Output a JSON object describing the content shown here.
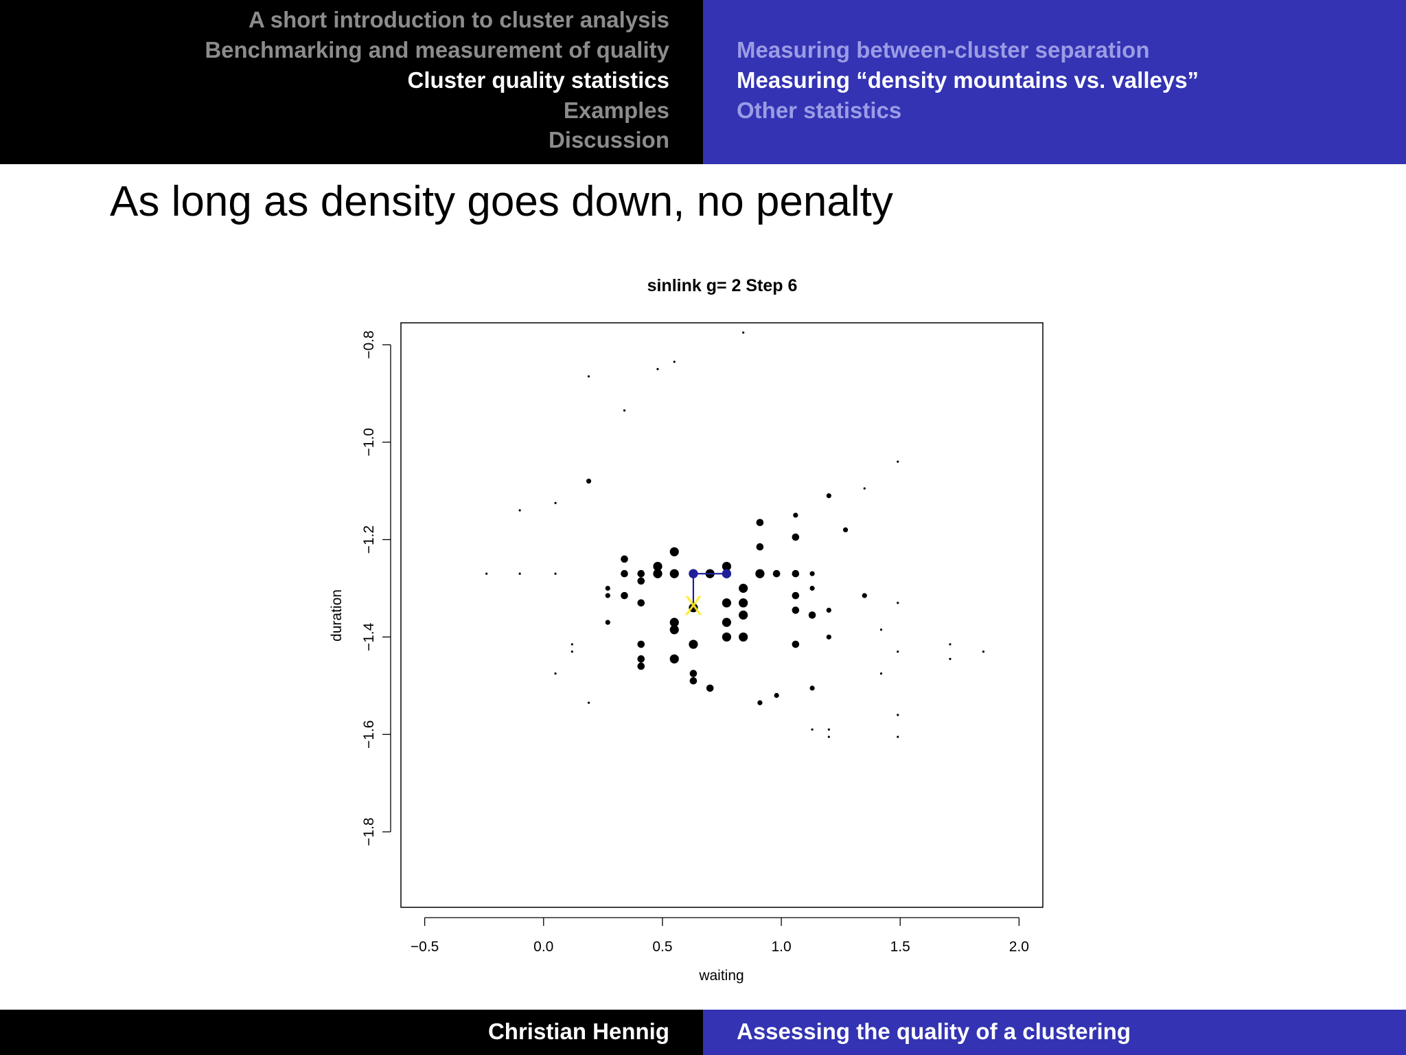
{
  "header": {
    "sections": [
      {
        "label": "A short introduction to cluster analysis",
        "active": false
      },
      {
        "label": "Benchmarking and measurement of quality",
        "active": false
      },
      {
        "label": "Cluster quality statistics",
        "active": true
      },
      {
        "label": "Examples",
        "active": false
      },
      {
        "label": "Discussion",
        "active": false
      }
    ],
    "subsections": [
      {
        "label": "Measuring between-cluster separation",
        "active": false
      },
      {
        "label": "Measuring “density mountains vs. valleys”",
        "active": true
      },
      {
        "label": "Other statistics",
        "active": false
      }
    ]
  },
  "slide": {
    "title": "As long as density goes down, no penalty"
  },
  "footer": {
    "author": "Christian Hennig",
    "talk_title": "Assessing the quality of a clustering"
  },
  "colors": {
    "header_left": "#000000",
    "header_right": "#3333b3",
    "active_text": "#ffffff",
    "inactive_section": "#8c8c8c",
    "inactive_subsection": "#9c9ce6",
    "points": "#000000",
    "path": "#1f1f9a",
    "marker": "#ffee22"
  },
  "chart_data": {
    "type": "scatter",
    "title": "sinlink  g= 2  Step  6",
    "xlabel": "waiting",
    "ylabel": "duration",
    "xlim": [
      -0.6,
      2.1
    ],
    "ylim": [
      -1.955,
      -0.755
    ],
    "xticks": [
      -0.5,
      0.0,
      0.5,
      1.0,
      1.5,
      2.0
    ],
    "xtick_labels": [
      "−0.5",
      "0.0",
      "0.5",
      "1.0",
      "1.5",
      "2.0"
    ],
    "yticks": [
      -1.8,
      -1.6,
      -1.4,
      -1.2,
      -1.0,
      -0.8
    ],
    "ytick_labels": [
      "−1.8",
      "−1.6",
      "−1.4",
      "−1.2",
      "−1.0",
      "−0.8"
    ],
    "grid": false,
    "point_size_note": "point size reflects local density",
    "points": [
      {
        "x": 0.84,
        "y": -0.775,
        "s": 1
      },
      {
        "x": 0.55,
        "y": -0.835,
        "s": 1
      },
      {
        "x": 0.48,
        "y": -0.85,
        "s": 1
      },
      {
        "x": 0.19,
        "y": -0.865,
        "s": 1
      },
      {
        "x": 0.34,
        "y": -0.935,
        "s": 1
      },
      {
        "x": 1.49,
        "y": -1.04,
        "s": 1
      },
      {
        "x": 0.19,
        "y": -1.08,
        "s": 2
      },
      {
        "x": 1.2,
        "y": -1.11,
        "s": 2
      },
      {
        "x": 1.35,
        "y": -1.095,
        "s": 1
      },
      {
        "x": 0.05,
        "y": -1.125,
        "s": 1
      },
      {
        "x": -0.1,
        "y": -1.14,
        "s": 1
      },
      {
        "x": 1.06,
        "y": -1.15,
        "s": 2
      },
      {
        "x": 0.91,
        "y": -1.165,
        "s": 3
      },
      {
        "x": 1.27,
        "y": -1.18,
        "s": 2
      },
      {
        "x": 1.06,
        "y": -1.195,
        "s": 3
      },
      {
        "x": 0.91,
        "y": -1.215,
        "s": 3
      },
      {
        "x": 0.55,
        "y": -1.225,
        "s": 4
      },
      {
        "x": 0.34,
        "y": -1.24,
        "s": 3
      },
      {
        "x": 0.48,
        "y": -1.255,
        "s": 4
      },
      {
        "x": 0.77,
        "y": -1.255,
        "s": 4
      },
      {
        "x": -0.24,
        "y": -1.27,
        "s": 1
      },
      {
        "x": -0.1,
        "y": -1.27,
        "s": 1
      },
      {
        "x": 0.05,
        "y": -1.27,
        "s": 1
      },
      {
        "x": 0.34,
        "y": -1.27,
        "s": 3
      },
      {
        "x": 0.41,
        "y": -1.27,
        "s": 3
      },
      {
        "x": 0.48,
        "y": -1.27,
        "s": 4
      },
      {
        "x": 0.55,
        "y": -1.27,
        "s": 4
      },
      {
        "x": 0.63,
        "y": -1.27,
        "s": 4
      },
      {
        "x": 0.7,
        "y": -1.27,
        "s": 4
      },
      {
        "x": 0.77,
        "y": -1.27,
        "s": 4
      },
      {
        "x": 0.91,
        "y": -1.27,
        "s": 4
      },
      {
        "x": 0.98,
        "y": -1.27,
        "s": 3
      },
      {
        "x": 1.06,
        "y": -1.27,
        "s": 3
      },
      {
        "x": 1.13,
        "y": -1.27,
        "s": 2
      },
      {
        "x": 0.41,
        "y": -1.285,
        "s": 3
      },
      {
        "x": 0.27,
        "y": -1.3,
        "s": 2
      },
      {
        "x": 0.84,
        "y": -1.3,
        "s": 4
      },
      {
        "x": 1.13,
        "y": -1.3,
        "s": 2
      },
      {
        "x": 0.27,
        "y": -1.315,
        "s": 2
      },
      {
        "x": 0.34,
        "y": -1.315,
        "s": 3
      },
      {
        "x": 1.06,
        "y": -1.315,
        "s": 3
      },
      {
        "x": 1.35,
        "y": -1.315,
        "s": 2
      },
      {
        "x": 0.41,
        "y": -1.33,
        "s": 3
      },
      {
        "x": 0.77,
        "y": -1.33,
        "s": 4
      },
      {
        "x": 0.84,
        "y": -1.33,
        "s": 4
      },
      {
        "x": 1.49,
        "y": -1.33,
        "s": 1
      },
      {
        "x": 0.63,
        "y": -1.34,
        "s": 4
      },
      {
        "x": 1.06,
        "y": -1.345,
        "s": 3
      },
      {
        "x": 1.2,
        "y": -1.345,
        "s": 2
      },
      {
        "x": 0.84,
        "y": -1.355,
        "s": 4
      },
      {
        "x": 1.13,
        "y": -1.355,
        "s": 3
      },
      {
        "x": 0.27,
        "y": -1.37,
        "s": 2
      },
      {
        "x": 0.55,
        "y": -1.37,
        "s": 4
      },
      {
        "x": 0.77,
        "y": -1.37,
        "s": 4
      },
      {
        "x": 0.55,
        "y": -1.385,
        "s": 4
      },
      {
        "x": 1.42,
        "y": -1.385,
        "s": 1
      },
      {
        "x": 0.77,
        "y": -1.4,
        "s": 4
      },
      {
        "x": 0.84,
        "y": -1.4,
        "s": 4
      },
      {
        "x": 1.2,
        "y": -1.4,
        "s": 2
      },
      {
        "x": 0.41,
        "y": -1.415,
        "s": 3
      },
      {
        "x": 0.63,
        "y": -1.415,
        "s": 4
      },
      {
        "x": 1.06,
        "y": -1.415,
        "s": 3
      },
      {
        "x": 0.12,
        "y": -1.415,
        "s": 1
      },
      {
        "x": 1.71,
        "y": -1.415,
        "s": 1
      },
      {
        "x": 0.12,
        "y": -1.43,
        "s": 1
      },
      {
        "x": 1.49,
        "y": -1.43,
        "s": 1
      },
      {
        "x": 1.85,
        "y": -1.43,
        "s": 1
      },
      {
        "x": 0.41,
        "y": -1.445,
        "s": 3
      },
      {
        "x": 0.55,
        "y": -1.445,
        "s": 4
      },
      {
        "x": 1.71,
        "y": -1.445,
        "s": 1
      },
      {
        "x": 0.41,
        "y": -1.46,
        "s": 3
      },
      {
        "x": 0.05,
        "y": -1.475,
        "s": 1
      },
      {
        "x": 0.63,
        "y": -1.475,
        "s": 3
      },
      {
        "x": 1.42,
        "y": -1.475,
        "s": 1
      },
      {
        "x": 0.63,
        "y": -1.49,
        "s": 3
      },
      {
        "x": 0.7,
        "y": -1.505,
        "s": 3
      },
      {
        "x": 1.13,
        "y": -1.505,
        "s": 2
      },
      {
        "x": 0.98,
        "y": -1.52,
        "s": 2
      },
      {
        "x": 0.19,
        "y": -1.535,
        "s": 1
      },
      {
        "x": 0.91,
        "y": -1.535,
        "s": 2
      },
      {
        "x": 1.49,
        "y": -1.56,
        "s": 1
      },
      {
        "x": 1.13,
        "y": -1.59,
        "s": 1
      },
      {
        "x": 1.2,
        "y": -1.59,
        "s": 1
      },
      {
        "x": 1.2,
        "y": -1.605,
        "s": 1
      },
      {
        "x": 1.49,
        "y": -1.605,
        "s": 1
      }
    ],
    "path": [
      {
        "x": 0.63,
        "y": -1.34
      },
      {
        "x": 0.63,
        "y": -1.27
      },
      {
        "x": 0.77,
        "y": -1.27
      }
    ],
    "marker": {
      "x": 0.63,
      "y": -1.335,
      "label": "X"
    }
  }
}
